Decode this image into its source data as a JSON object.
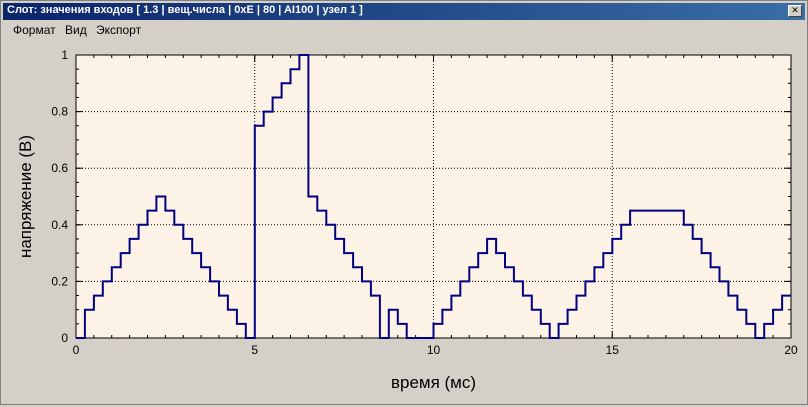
{
  "window": {
    "title": "Слот: значения входов [ 1.3 | вещ.числа | 0xE | 80 | AI100 | узел 1 ]"
  },
  "menu": {
    "items": [
      "Формат",
      "Вид",
      "Экспорт"
    ]
  },
  "chart_data": {
    "type": "line",
    "title": "",
    "xlabel": "время (мс)",
    "ylabel": "напряжение (В)",
    "xlim": [
      0,
      20
    ],
    "ylim": [
      0,
      1
    ],
    "xticks": [
      0,
      5,
      10,
      15,
      20
    ],
    "yticks": [
      0,
      0.2,
      0.4,
      0.6,
      0.8,
      1
    ],
    "xtick_labels": [
      "0",
      "5",
      "10",
      "15",
      "20"
    ],
    "ytick_labels": [
      "0",
      "0.2",
      "0.4",
      "0.6",
      "0.8",
      "1"
    ],
    "grid": true,
    "step": "post",
    "series": [
      {
        "color": "#000080",
        "x": [
          0,
          0.25,
          0.5,
          0.75,
          1,
          1.25,
          1.5,
          1.75,
          2,
          2.25,
          2.5,
          2.75,
          3,
          3.25,
          3.5,
          3.75,
          4,
          4.25,
          4.5,
          4.75,
          5,
          5.25,
          5.5,
          5.75,
          6,
          6.25,
          6.5,
          6.75,
          7,
          7.25,
          7.5,
          7.75,
          8,
          8.25,
          8.5,
          8.75,
          9,
          9.25,
          9.5,
          9.75,
          10,
          10.25,
          10.5,
          10.75,
          11,
          11.25,
          11.5,
          11.75,
          12,
          12.25,
          12.5,
          12.75,
          13,
          13.25,
          13.5,
          13.75,
          14,
          14.25,
          14.5,
          14.75,
          15,
          15.25,
          15.5,
          15.75,
          16,
          16.25,
          16.5,
          16.75,
          17,
          17.25,
          17.5,
          17.75,
          18,
          18.25,
          18.5,
          18.75,
          19,
          19.25,
          19.5,
          19.75,
          20
        ],
        "y": [
          0,
          0.1,
          0.15,
          0.2,
          0.25,
          0.3,
          0.35,
          0.4,
          0.45,
          0.5,
          0.45,
          0.4,
          0.35,
          0.3,
          0.25,
          0.2,
          0.15,
          0.1,
          0.05,
          0,
          0.75,
          0.8,
          0.85,
          0.9,
          0.95,
          1,
          0.5,
          0.45,
          0.4,
          0.35,
          0.3,
          0.25,
          0.2,
          0.15,
          0,
          0.1,
          0.05,
          0,
          0,
          0,
          0.05,
          0.1,
          0.15,
          0.2,
          0.25,
          0.3,
          0.35,
          0.3,
          0.25,
          0.2,
          0.15,
          0.1,
          0.05,
          0,
          0.05,
          0.1,
          0.15,
          0.2,
          0.25,
          0.3,
          0.35,
          0.4,
          0.45,
          0.45,
          0.45,
          0.45,
          0.45,
          0.45,
          0.4,
          0.35,
          0.3,
          0.25,
          0.2,
          0.15,
          0.1,
          0.05,
          0,
          0.05,
          0.1,
          0.15,
          0.15
        ]
      }
    ]
  }
}
